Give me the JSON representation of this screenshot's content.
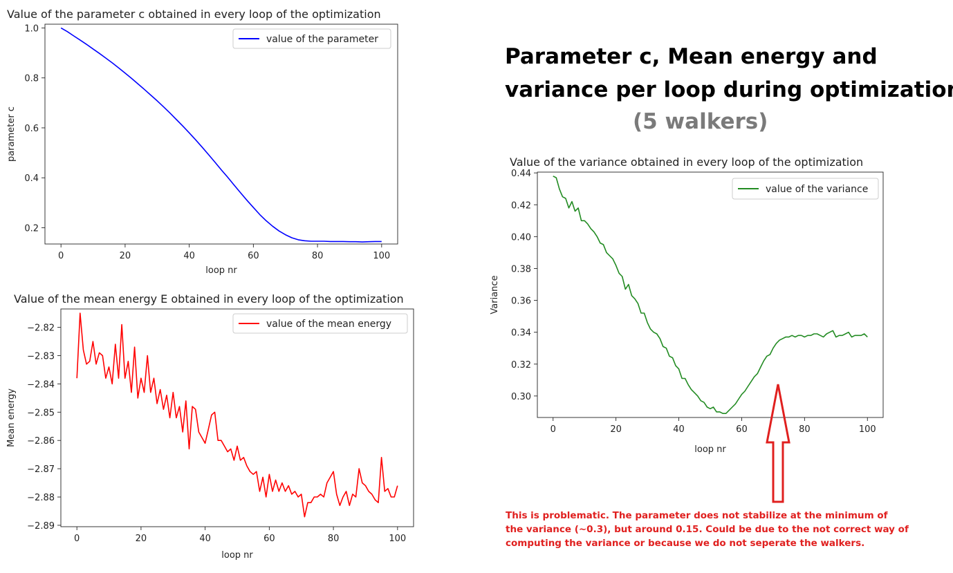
{
  "heading": {
    "line1": "Parameter c, Mean energy and",
    "line2": "variance per loop during optimization",
    "sub": "(5 walkers)"
  },
  "note": {
    "lines": [
      "This is problematic. The parameter does not stabilize at the minimum of",
      "the variance (~0.3), but around 0.15. Could be due to the not correct way of",
      "computing the variance or because we do not seperate the walkers."
    ],
    "color": "#e0201f"
  },
  "chart_data": [
    {
      "id": "param",
      "type": "line",
      "title": "Value of the parameter c obtained in every loop of the optimization",
      "xlabel": "loop nr",
      "ylabel": "parameter c",
      "xlim": [
        -5,
        105
      ],
      "ylim": [
        0.135,
        1.015
      ],
      "xticks": [
        0,
        20,
        40,
        60,
        80,
        100
      ],
      "yticks": [
        0.2,
        0.4,
        0.6,
        0.8,
        1.0
      ],
      "ytick_labels": [
        "0.2",
        "0.4",
        "0.6",
        "0.8",
        "1.0"
      ],
      "legend": "top-right",
      "grid": false,
      "series": [
        {
          "name": "value of the parameter",
          "color": "#0000ff",
          "x": [
            0,
            2,
            4,
            6,
            8,
            10,
            12,
            14,
            16,
            18,
            20,
            22,
            24,
            26,
            28,
            30,
            32,
            34,
            36,
            38,
            40,
            42,
            44,
            46,
            48,
            50,
            52,
            54,
            56,
            58,
            60,
            62,
            64,
            66,
            68,
            70,
            72,
            74,
            76,
            78,
            80,
            82,
            84,
            86,
            88,
            90,
            92,
            94,
            96,
            98,
            100
          ],
          "y": [
            1.0,
            0.985,
            0.968,
            0.951,
            0.934,
            0.916,
            0.898,
            0.879,
            0.86,
            0.84,
            0.819,
            0.798,
            0.776,
            0.754,
            0.731,
            0.708,
            0.684,
            0.659,
            0.633,
            0.607,
            0.58,
            0.552,
            0.523,
            0.493,
            0.463,
            0.432,
            0.402,
            0.371,
            0.34,
            0.31,
            0.281,
            0.253,
            0.228,
            0.206,
            0.187,
            0.172,
            0.16,
            0.152,
            0.148,
            0.146,
            0.146,
            0.146,
            0.145,
            0.145,
            0.145,
            0.144,
            0.144,
            0.143,
            0.144,
            0.145,
            0.145
          ]
        }
      ]
    },
    {
      "id": "energy",
      "type": "line",
      "title": "Value of the mean energy E obtained in every loop of the optimization",
      "xlabel": "loop nr",
      "ylabel": "Mean energy",
      "xlim": [
        -5,
        105
      ],
      "ylim": [
        -2.8905,
        -2.8135
      ],
      "xticks": [
        0,
        20,
        40,
        60,
        80,
        100
      ],
      "yticks": [
        -2.82,
        -2.83,
        -2.84,
        -2.85,
        -2.86,
        -2.87,
        -2.88,
        -2.89
      ],
      "ytick_labels": [
        "−2.82",
        "−2.83",
        "−2.84",
        "−2.85",
        "−2.86",
        "−2.87",
        "−2.88",
        "−2.89"
      ],
      "legend": "top-right",
      "grid": false,
      "series": [
        {
          "name": "value of the mean energy",
          "color": "#ff0000",
          "x": [
            0,
            1,
            2,
            3,
            4,
            5,
            6,
            7,
            8,
            9,
            10,
            11,
            12,
            13,
            14,
            15,
            16,
            17,
            18,
            19,
            20,
            21,
            22,
            23,
            24,
            25,
            26,
            27,
            28,
            29,
            30,
            31,
            32,
            33,
            34,
            35,
            36,
            37,
            38,
            39,
            40,
            41,
            42,
            43,
            44,
            45,
            46,
            47,
            48,
            49,
            50,
            51,
            52,
            53,
            54,
            55,
            56,
            57,
            58,
            59,
            60,
            61,
            62,
            63,
            64,
            65,
            66,
            67,
            68,
            69,
            70,
            71,
            72,
            73,
            74,
            75,
            76,
            77,
            78,
            79,
            80,
            81,
            82,
            83,
            84,
            85,
            86,
            87,
            88,
            89,
            90,
            91,
            92,
            93,
            94,
            95,
            96,
            97,
            98,
            99,
            100
          ],
          "y": [
            -2.838,
            -2.815,
            -2.828,
            -2.833,
            -2.832,
            -2.825,
            -2.833,
            -2.829,
            -2.83,
            -2.838,
            -2.834,
            -2.84,
            -2.826,
            -2.838,
            -2.819,
            -2.838,
            -2.832,
            -2.843,
            -2.827,
            -2.845,
            -2.838,
            -2.843,
            -2.83,
            -2.843,
            -2.838,
            -2.847,
            -2.842,
            -2.849,
            -2.844,
            -2.852,
            -2.843,
            -2.852,
            -2.848,
            -2.857,
            -2.846,
            -2.863,
            -2.848,
            -2.849,
            -2.857,
            -2.859,
            -2.861,
            -2.856,
            -2.851,
            -2.85,
            -2.86,
            -2.86,
            -2.862,
            -2.864,
            -2.863,
            -2.867,
            -2.862,
            -2.867,
            -2.866,
            -2.869,
            -2.871,
            -2.872,
            -2.871,
            -2.878,
            -2.873,
            -2.88,
            -2.872,
            -2.878,
            -2.874,
            -2.878,
            -2.875,
            -2.878,
            -2.876,
            -2.879,
            -2.878,
            -2.88,
            -2.879,
            -2.887,
            -2.882,
            -2.882,
            -2.88,
            -2.88,
            -2.879,
            -2.88,
            -2.875,
            -2.873,
            -2.871,
            -2.879,
            -2.883,
            -2.88,
            -2.878,
            -2.883,
            -2.879,
            -2.88,
            -2.87,
            -2.875,
            -2.876,
            -2.878,
            -2.879,
            -2.881,
            -2.882,
            -2.866,
            -2.878,
            -2.877,
            -2.88,
            -2.88,
            -2.876
          ]
        }
      ]
    },
    {
      "id": "variance",
      "type": "line",
      "title": "Value of the variance obtained in every loop of the optimization",
      "xlabel": "loop nr",
      "ylabel": "Variance",
      "xlim": [
        -5,
        105
      ],
      "ylim": [
        0.2865,
        0.4405
      ],
      "xticks": [
        0,
        20,
        40,
        60,
        80,
        100
      ],
      "yticks": [
        0.3,
        0.32,
        0.34,
        0.36,
        0.38,
        0.4,
        0.42,
        0.44
      ],
      "ytick_labels": [
        "0.30",
        "0.32",
        "0.34",
        "0.36",
        "0.38",
        "0.40",
        "0.42",
        "0.44"
      ],
      "legend": "top-right",
      "grid": false,
      "series": [
        {
          "name": "value of the variance",
          "color": "#228b22",
          "x": [
            0,
            1,
            2,
            3,
            4,
            5,
            6,
            7,
            8,
            9,
            10,
            11,
            12,
            13,
            14,
            15,
            16,
            17,
            18,
            19,
            20,
            21,
            22,
            23,
            24,
            25,
            26,
            27,
            28,
            29,
            30,
            31,
            32,
            33,
            34,
            35,
            36,
            37,
            38,
            39,
            40,
            41,
            42,
            43,
            44,
            45,
            46,
            47,
            48,
            49,
            50,
            51,
            52,
            53,
            54,
            55,
            56,
            57,
            58,
            59,
            60,
            61,
            62,
            63,
            64,
            65,
            66,
            67,
            68,
            69,
            70,
            71,
            72,
            73,
            74,
            75,
            76,
            77,
            78,
            79,
            80,
            81,
            82,
            83,
            84,
            85,
            86,
            87,
            88,
            89,
            90,
            91,
            92,
            93,
            94,
            95,
            96,
            97,
            98,
            99,
            100
          ],
          "y": [
            0.438,
            0.437,
            0.43,
            0.425,
            0.424,
            0.418,
            0.422,
            0.416,
            0.418,
            0.41,
            0.41,
            0.408,
            0.405,
            0.403,
            0.4,
            0.396,
            0.395,
            0.39,
            0.388,
            0.386,
            0.382,
            0.377,
            0.375,
            0.367,
            0.37,
            0.363,
            0.361,
            0.358,
            0.352,
            0.352,
            0.346,
            0.342,
            0.34,
            0.339,
            0.336,
            0.331,
            0.33,
            0.325,
            0.324,
            0.319,
            0.317,
            0.311,
            0.311,
            0.307,
            0.304,
            0.302,
            0.3,
            0.297,
            0.296,
            0.293,
            0.292,
            0.293,
            0.29,
            0.29,
            0.289,
            0.289,
            0.291,
            0.293,
            0.295,
            0.298,
            0.301,
            0.303,
            0.306,
            0.309,
            0.312,
            0.314,
            0.318,
            0.322,
            0.325,
            0.326,
            0.33,
            0.333,
            0.335,
            0.336,
            0.337,
            0.337,
            0.338,
            0.337,
            0.338,
            0.338,
            0.337,
            0.338,
            0.338,
            0.339,
            0.339,
            0.338,
            0.337,
            0.339,
            0.34,
            0.341,
            0.337,
            0.338,
            0.338,
            0.339,
            0.34,
            0.337,
            0.338,
            0.338,
            0.338,
            0.339,
            0.337
          ]
        }
      ]
    }
  ]
}
